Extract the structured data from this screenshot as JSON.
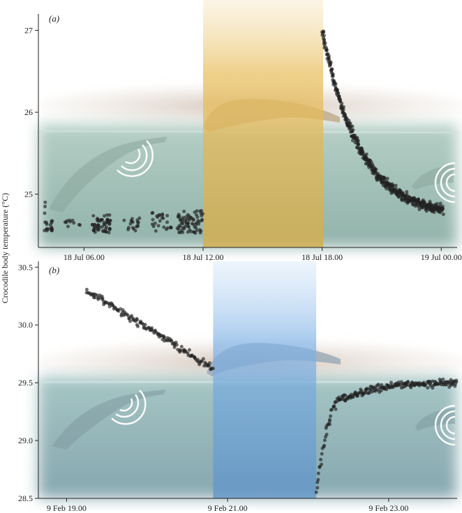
{
  "figure": {
    "ylabel": "Crocodile body temperature (°C)"
  },
  "chart_data": [
    {
      "type": "scatter",
      "panel_label": "(a)",
      "title": "",
      "xlabel": "",
      "ylabel": "Crocodile body temperature (°C)",
      "x_tick_labels": [
        "18 Jul 06.00",
        "18 Jul 12.00",
        "18 Jul 18.00",
        "19 Jul 00.00"
      ],
      "x_ticks_hours": [
        6,
        12,
        18,
        24
      ],
      "xlim_hours": [
        3.7,
        24.8
      ],
      "ylim": [
        24.35,
        27.2
      ],
      "y_ticks": [
        25,
        26,
        27
      ],
      "shaded_interval_hours": [
        12.0,
        18.05
      ],
      "shade_color": "#e7b84e",
      "water_color": "#7fa8a0",
      "point_color": "#222222",
      "series": [
        {
          "clusters": [
            {
              "x_start": 4.0,
              "x_end": 4.4,
              "y_min": 24.55,
              "y_max": 24.68,
              "n": 18
            },
            {
              "x_start": 4.0,
              "x_end": 4.05,
              "y_min": 24.75,
              "y_max": 24.92,
              "n": 3
            },
            {
              "x_start": 5.0,
              "x_end": 5.8,
              "y_min": 24.58,
              "y_max": 24.72,
              "n": 10
            },
            {
              "x_start": 6.4,
              "x_end": 7.4,
              "y_min": 24.53,
              "y_max": 24.75,
              "n": 55
            },
            {
              "x_start": 8.0,
              "x_end": 8.8,
              "y_min": 24.55,
              "y_max": 24.72,
              "n": 18
            },
            {
              "x_start": 9.4,
              "x_end": 10.5,
              "y_min": 24.55,
              "y_max": 24.78,
              "n": 25
            },
            {
              "x_start": 10.7,
              "x_end": 12.0,
              "y_min": 24.52,
              "y_max": 24.8,
              "n": 70
            }
          ],
          "decay": {
            "x_start": 18.0,
            "x_end": 24.1,
            "y_start": 27.0,
            "y_end": 24.8,
            "n": 460
          }
        }
      ]
    },
    {
      "type": "scatter",
      "panel_label": "(b)",
      "title": "",
      "xlabel": "",
      "ylabel": "",
      "x_tick_labels": [
        "9 Feb 19.00",
        "9 Feb  21.00",
        "9 Feb  23.00"
      ],
      "x_ticks_hours": [
        19,
        21,
        23
      ],
      "xlim_hours": [
        18.65,
        23.85
      ],
      "ylim": [
        28.5,
        30.55
      ],
      "y_ticks": [
        28.5,
        29.0,
        29.5,
        30.0,
        30.5
      ],
      "shaded_interval_hours": [
        20.82,
        22.1
      ],
      "shade_color": "#6aa2dc",
      "water_color": "#5f8f9a",
      "point_color": "#222222",
      "series": [
        {
          "cooling": {
            "x_start": 19.25,
            "x_end": 20.82,
            "y_start": 30.3,
            "y_end": 29.62,
            "n": 150
          },
          "rise": {
            "x_start": 22.1,
            "x_end": 22.45,
            "y_start": 28.57,
            "y_end": 29.38,
            "n": 45
          },
          "plateau": {
            "x_start": 22.45,
            "x_end": 23.85,
            "y_start": 29.35,
            "y_end": 29.5,
            "n": 180
          }
        }
      ]
    }
  ]
}
